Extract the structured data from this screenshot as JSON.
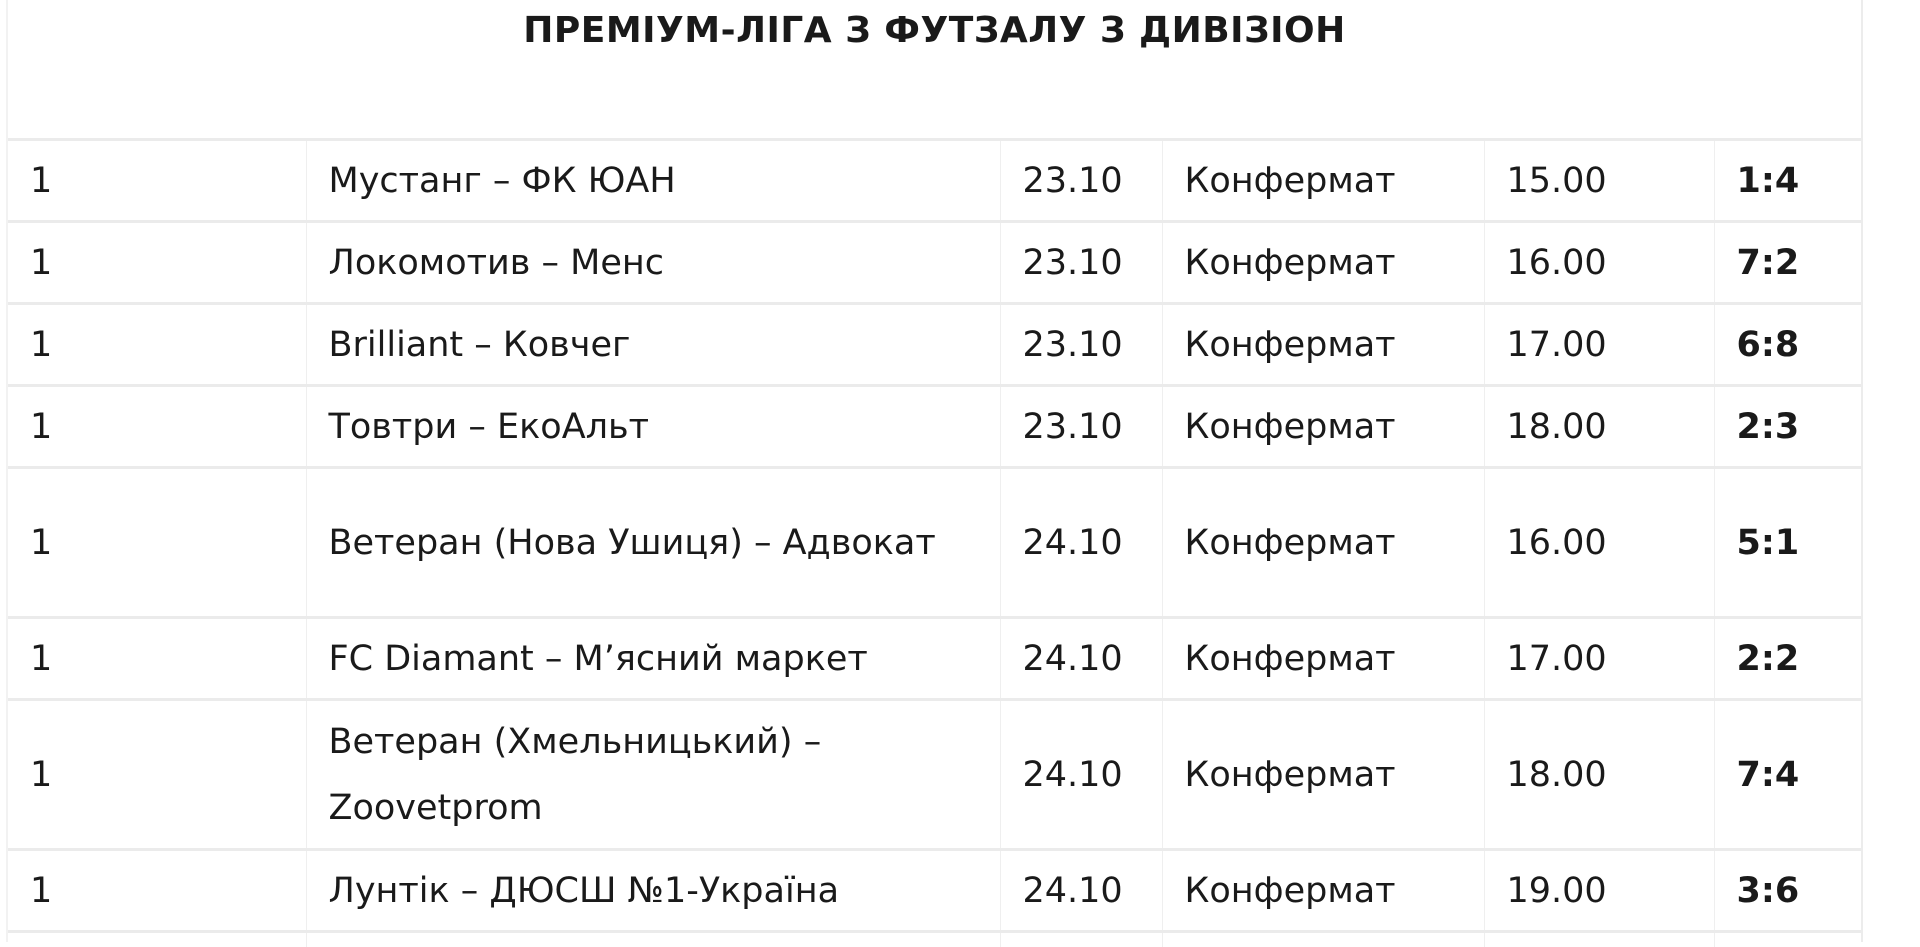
{
  "title": "ПРЕМІУМ-ЛІГА З ФУТЗАЛУ З ДИВІЗІОН",
  "matches": [
    {
      "round": "1",
      "teams": "Мустанг – ФК ЮАН",
      "date": "23.10",
      "venue": "Конфермат",
      "time": "15.00",
      "score": "1:4"
    },
    {
      "round": "1",
      "teams": "Локомотив – Менс",
      "date": "23.10",
      "venue": "Конфермат",
      "time": "16.00",
      "score": "7:2"
    },
    {
      "round": "1",
      "teams": "Brilliant – Ковчег",
      "date": "23.10",
      "venue": "Конфермат",
      "time": "17.00",
      "score": "6:8"
    },
    {
      "round": "1",
      "teams": "Товтри – ЕкоАльт",
      "date": "23.10",
      "venue": "Конфермат",
      "time": "18.00",
      "score": "2:3"
    },
    {
      "round": "1",
      "teams": "Ветеран (Нова Ушиця) – Адвокат",
      "date": "24.10",
      "venue": "Конфермат",
      "time": "16.00",
      "score": "5:1"
    },
    {
      "round": "1",
      "teams": "FC Diamant – М’ясний маркет",
      "date": "24.10",
      "venue": "Конфермат",
      "time": "17.00",
      "score": "2:2"
    },
    {
      "round": "1",
      "teams": "Ветеран (Хмельницький) – Zoovetprom",
      "date": "24.10",
      "venue": "Конфермат",
      "time": "18.00",
      "score": "7:4"
    },
    {
      "round": "1",
      "teams": "Лунтік – ДЮСШ №1-Україна",
      "date": "24.10",
      "venue": "Конфермат",
      "time": "19.00",
      "score": "3:6"
    }
  ]
}
